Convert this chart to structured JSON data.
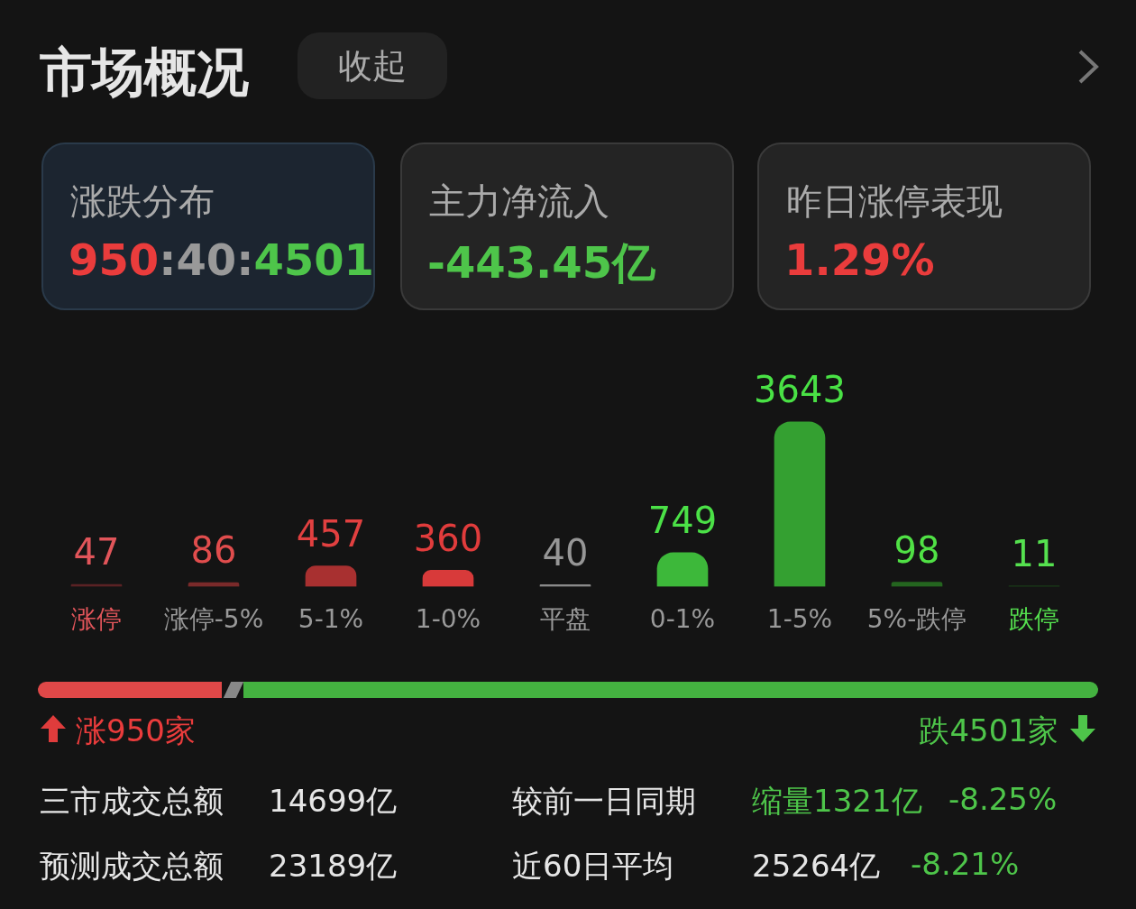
{
  "chart_data": {
    "type": "bar",
    "title": "市场概况",
    "categories": [
      "涨停",
      "涨停-5%",
      "5-1%",
      "1-0%",
      "平盘",
      "0-1%",
      "1-5%",
      "5%-跌停",
      "跌停"
    ],
    "values": [
      47,
      86,
      457,
      360,
      40,
      749,
      3643,
      98,
      11
    ],
    "colors": [
      "#5a2224",
      "#7a2a2a",
      "#a83030",
      "#d83a3a",
      "#8a8a8a",
      "#3db83a",
      "#34a031",
      "#24651f",
      "#1c4a1a"
    ],
    "data_labels": true,
    "annotations": [
      "收起",
      "涨跌分布",
      "950:40:4501",
      "主力净流入",
      "-443.45亿",
      "昨日涨停表现",
      "1.29%",
      "涨950家",
      "跌4501家",
      "三市成交总额",
      "14699亿",
      "较前一日同期",
      "缩量1321亿",
      "-8.25%",
      "预测成交总额",
      "23189亿",
      "近60日平均",
      "25264亿",
      "-8.21%"
    ]
  }
}
